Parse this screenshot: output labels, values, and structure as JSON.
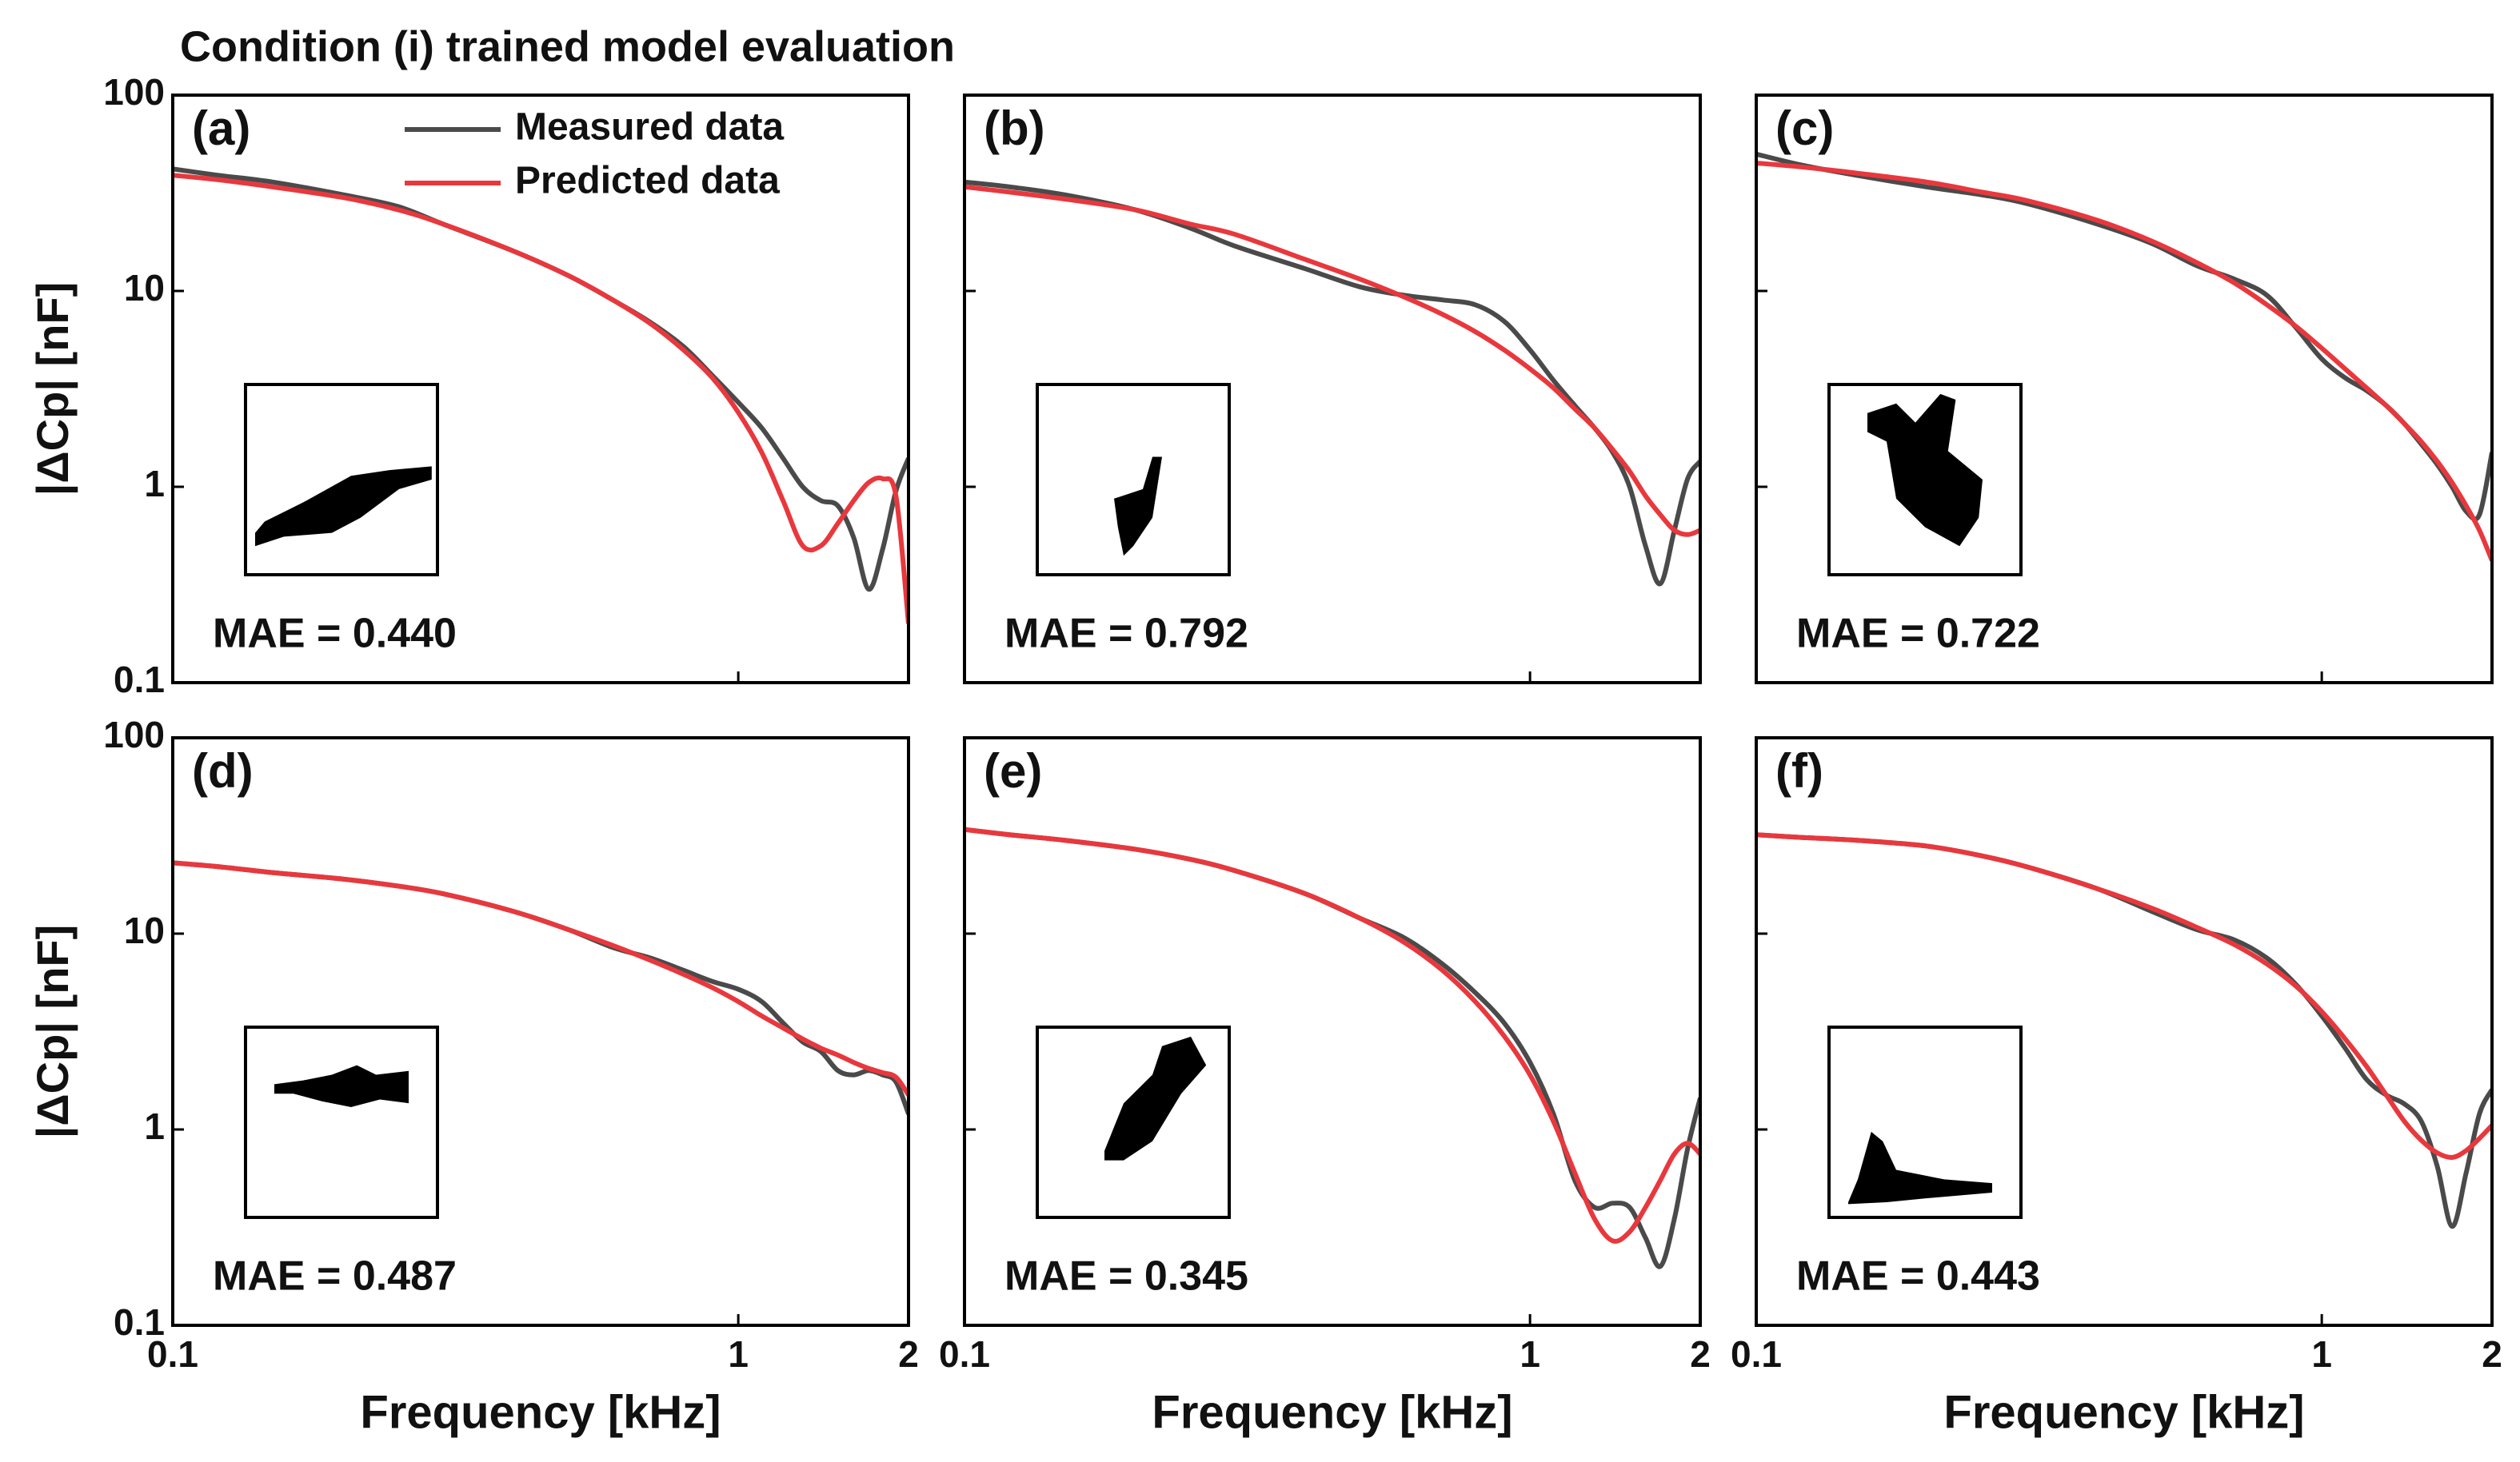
{
  "title": "Condition (i) trained model evaluation",
  "chart_data": [
    {
      "type": "line",
      "panel_label": "(a)",
      "annotation": "MAE = 0.440",
      "ylabel": "|ΔCp| [nF]",
      "log_x": true,
      "log_y": true,
      "xlim": [
        0.1,
        2
      ],
      "ylim": [
        0.1,
        100
      ],
      "yticks": [
        0.1,
        1,
        10,
        100
      ],
      "legend": "upper right",
      "x": [
        0.1,
        0.12,
        0.15,
        0.2,
        0.25,
        0.3,
        0.4,
        0.5,
        0.6,
        0.7,
        0.8,
        0.9,
        1.0,
        1.1,
        1.2,
        1.3,
        1.4,
        1.5,
        1.6,
        1.7,
        1.8,
        1.9,
        2.0
      ],
      "series": [
        {
          "name": "Measured data",
          "color": "#4a4a4a",
          "values": [
            42,
            39,
            36,
            31,
            27,
            22,
            16,
            12,
            9,
            6.9,
            5.2,
            3.7,
            2.7,
            2.0,
            1.4,
            1.0,
            0.85,
            0.8,
            0.55,
            0.3,
            0.48,
            0.95,
            1.4
          ]
        },
        {
          "name": "Predicted data",
          "color": "#e8383d",
          "values": [
            39,
            37,
            34,
            30,
            26,
            22,
            16,
            12,
            9,
            6.8,
            5,
            3.6,
            2.4,
            1.5,
            0.85,
            0.5,
            0.5,
            0.65,
            0.85,
            1.05,
            1.1,
            0.9,
            0.2
          ]
        }
      ]
    },
    {
      "type": "line",
      "panel_label": "(b)",
      "annotation": "MAE = 0.792",
      "log_x": true,
      "log_y": true,
      "xlim": [
        0.1,
        2
      ],
      "ylim": [
        0.1,
        100
      ],
      "x": [
        0.1,
        0.12,
        0.15,
        0.2,
        0.25,
        0.3,
        0.4,
        0.5,
        0.6,
        0.7,
        0.8,
        0.9,
        1.0,
        1.1,
        1.2,
        1.3,
        1.4,
        1.5,
        1.6,
        1.7,
        1.8,
        1.9,
        2.0
      ],
      "series": [
        {
          "name": "Measured data",
          "color": "#4a4a4a",
          "values": [
            36,
            34,
            31,
            26,
            21,
            17,
            13,
            10.5,
            9.5,
            9,
            8.5,
            7,
            5,
            3.5,
            2.6,
            2.0,
            1.5,
            1.0,
            0.5,
            0.32,
            0.6,
            1.1,
            1.35
          ]
        },
        {
          "name": "Predicted data",
          "color": "#e8383d",
          "values": [
            34,
            32,
            29.5,
            26,
            22,
            19.5,
            14.5,
            11.5,
            9.3,
            7.6,
            6.2,
            5,
            4,
            3.2,
            2.5,
            2.0,
            1.55,
            1.2,
            0.9,
            0.72,
            0.6,
            0.57,
            0.6
          ]
        }
      ]
    },
    {
      "type": "line",
      "panel_label": "(c)",
      "annotation": "MAE = 0.722",
      "log_x": true,
      "log_y": true,
      "xlim": [
        0.1,
        2
      ],
      "ylim": [
        0.1,
        100
      ],
      "x": [
        0.1,
        0.12,
        0.15,
        0.2,
        0.25,
        0.3,
        0.4,
        0.5,
        0.6,
        0.7,
        0.8,
        0.9,
        1.0,
        1.1,
        1.2,
        1.3,
        1.4,
        1.5,
        1.6,
        1.7,
        1.8,
        1.9,
        2.0
      ],
      "series": [
        {
          "name": "Measured data",
          "color": "#4a4a4a",
          "values": [
            50,
            44,
            39,
            34,
            31,
            28,
            22,
            17.5,
            13.5,
            11.5,
            9.5,
            6.5,
            4.5,
            3.6,
            3.1,
            2.6,
            2.1,
            1.65,
            1.3,
            1.0,
            0.75,
            0.72,
            1.5
          ]
        },
        {
          "name": "Predicted data",
          "color": "#e8383d",
          "values": [
            45,
            43,
            40,
            36,
            32,
            29,
            23,
            18,
            14,
            11,
            8.5,
            6.6,
            5.1,
            4.0,
            3.2,
            2.6,
            2.1,
            1.7,
            1.35,
            1.05,
            0.8,
            0.6,
            0.42
          ]
        }
      ]
    },
    {
      "type": "line",
      "panel_label": "(d)",
      "annotation": "MAE = 0.487",
      "ylabel": "|ΔCp| [nF]",
      "xlabel": "Frequency [kHz]",
      "log_x": true,
      "log_y": true,
      "xlim": [
        0.1,
        2
      ],
      "ylim": [
        0.1,
        100
      ],
      "xticks": [
        0.1,
        1,
        2
      ],
      "yticks": [
        0.1,
        1,
        10,
        100
      ],
      "x": [
        0.1,
        0.12,
        0.15,
        0.2,
        0.25,
        0.3,
        0.4,
        0.5,
        0.6,
        0.7,
        0.8,
        0.9,
        1.0,
        1.1,
        1.2,
        1.3,
        1.4,
        1.5,
        1.6,
        1.7,
        1.8,
        1.9,
        2.0
      ],
      "series": [
        {
          "name": "Measured data",
          "color": "#4a4a4a",
          "values": [
            23,
            22,
            20.5,
            19,
            17.5,
            16,
            13,
            10.5,
            8.5,
            7.5,
            6.5,
            5.7,
            5.2,
            4.5,
            3.5,
            2.8,
            2.5,
            2.0,
            1.9,
            2.0,
            1.9,
            1.75,
            1.2
          ]
        },
        {
          "name": "Predicted data",
          "color": "#e8383d",
          "values": [
            23,
            22,
            20.5,
            19,
            17.5,
            16,
            13,
            10.5,
            8.7,
            7.3,
            6.2,
            5.3,
            4.5,
            3.8,
            3.3,
            2.9,
            2.6,
            2.4,
            2.2,
            2.05,
            1.95,
            1.85,
            1.5
          ]
        }
      ]
    },
    {
      "type": "line",
      "panel_label": "(e)",
      "annotation": "MAE = 0.345",
      "xlabel": "Frequency [kHz]",
      "log_x": true,
      "log_y": true,
      "xlim": [
        0.1,
        2
      ],
      "ylim": [
        0.1,
        100
      ],
      "xticks": [
        0.1,
        1,
        2
      ],
      "x": [
        0.1,
        0.12,
        0.15,
        0.2,
        0.25,
        0.3,
        0.4,
        0.5,
        0.6,
        0.7,
        0.8,
        0.9,
        1.0,
        1.1,
        1.2,
        1.3,
        1.4,
        1.5,
        1.6,
        1.7,
        1.8,
        1.9,
        2.0
      ],
      "series": [
        {
          "name": "Measured data",
          "color": "#4a4a4a",
          "values": [
            34,
            32,
            30,
            27,
            24,
            21,
            16,
            12,
            9.5,
            7,
            5,
            3.5,
            2.2,
            1.2,
            0.55,
            0.4,
            0.42,
            0.4,
            0.28,
            0.2,
            0.35,
            0.8,
            1.45
          ]
        },
        {
          "name": "Predicted data",
          "color": "#e8383d",
          "values": [
            34,
            32,
            30,
            27,
            24,
            21,
            16,
            12,
            9,
            6.5,
            4.5,
            3.0,
            1.9,
            1.1,
            0.6,
            0.35,
            0.27,
            0.3,
            0.4,
            0.55,
            0.75,
            0.85,
            0.75
          ]
        }
      ]
    },
    {
      "type": "line",
      "panel_label": "(f)",
      "annotation": "MAE = 0.443",
      "xlabel": "Frequency [kHz]",
      "log_x": true,
      "log_y": true,
      "xlim": [
        0.1,
        2
      ],
      "ylim": [
        0.1,
        100
      ],
      "xticks": [
        0.1,
        1,
        2
      ],
      "x": [
        0.1,
        0.12,
        0.15,
        0.2,
        0.25,
        0.3,
        0.4,
        0.5,
        0.6,
        0.7,
        0.8,
        0.9,
        1.0,
        1.1,
        1.2,
        1.3,
        1.4,
        1.5,
        1.6,
        1.7,
        1.8,
        1.9,
        2.0
      ],
      "series": [
        {
          "name": "Measured data",
          "color": "#4a4a4a",
          "values": [
            32,
            31,
            30,
            28,
            25,
            22,
            17,
            13,
            10.5,
            9.3,
            7.5,
            5.5,
            3.8,
            2.6,
            1.8,
            1.5,
            1.35,
            1.1,
            0.65,
            0.32,
            0.6,
            1.2,
            1.6
          ]
        },
        {
          "name": "Predicted data",
          "color": "#e8383d",
          "values": [
            32,
            31,
            30,
            28,
            25,
            22,
            17,
            13.5,
            10.8,
            8.8,
            7,
            5.4,
            4.0,
            2.9,
            2.1,
            1.5,
            1.1,
            0.88,
            0.76,
            0.72,
            0.78,
            0.9,
            1.05
          ]
        }
      ]
    }
  ]
}
